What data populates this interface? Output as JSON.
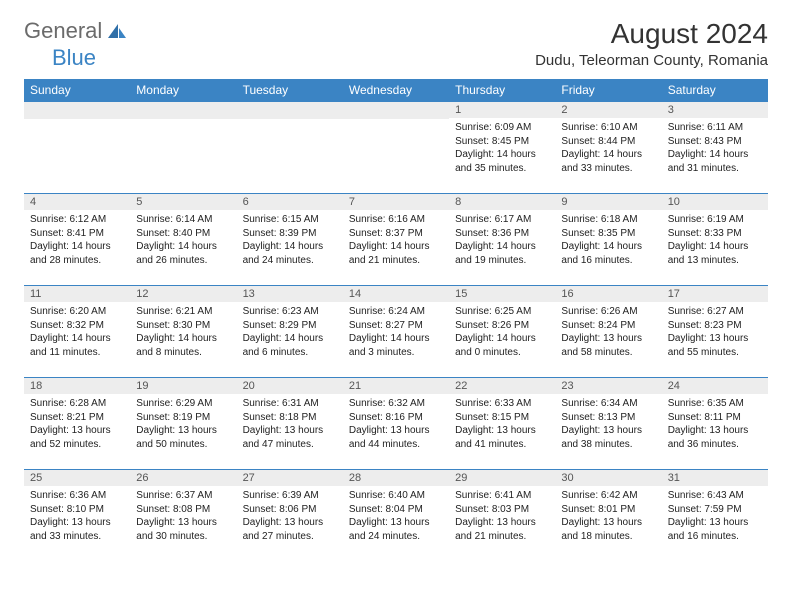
{
  "logo": {
    "part1": "General",
    "part2": "Blue"
  },
  "title": "August 2024",
  "location": "Dudu, Teleorman County, Romania",
  "colors": {
    "header_bg": "#3b84c4",
    "header_text": "#ffffff",
    "daynum_bg": "#ededed",
    "body_text": "#222222",
    "logo_gray": "#6b6b6b",
    "logo_blue": "#3b84c4"
  },
  "weekdays": [
    "Sunday",
    "Monday",
    "Tuesday",
    "Wednesday",
    "Thursday",
    "Friday",
    "Saturday"
  ],
  "weeks": [
    [
      {
        "day": "",
        "lines": []
      },
      {
        "day": "",
        "lines": []
      },
      {
        "day": "",
        "lines": []
      },
      {
        "day": "",
        "lines": []
      },
      {
        "day": "1",
        "lines": [
          "Sunrise: 6:09 AM",
          "Sunset: 8:45 PM",
          "Daylight: 14 hours",
          "and 35 minutes."
        ]
      },
      {
        "day": "2",
        "lines": [
          "Sunrise: 6:10 AM",
          "Sunset: 8:44 PM",
          "Daylight: 14 hours",
          "and 33 minutes."
        ]
      },
      {
        "day": "3",
        "lines": [
          "Sunrise: 6:11 AM",
          "Sunset: 8:43 PM",
          "Daylight: 14 hours",
          "and 31 minutes."
        ]
      }
    ],
    [
      {
        "day": "4",
        "lines": [
          "Sunrise: 6:12 AM",
          "Sunset: 8:41 PM",
          "Daylight: 14 hours",
          "and 28 minutes."
        ]
      },
      {
        "day": "5",
        "lines": [
          "Sunrise: 6:14 AM",
          "Sunset: 8:40 PM",
          "Daylight: 14 hours",
          "and 26 minutes."
        ]
      },
      {
        "day": "6",
        "lines": [
          "Sunrise: 6:15 AM",
          "Sunset: 8:39 PM",
          "Daylight: 14 hours",
          "and 24 minutes."
        ]
      },
      {
        "day": "7",
        "lines": [
          "Sunrise: 6:16 AM",
          "Sunset: 8:37 PM",
          "Daylight: 14 hours",
          "and 21 minutes."
        ]
      },
      {
        "day": "8",
        "lines": [
          "Sunrise: 6:17 AM",
          "Sunset: 8:36 PM",
          "Daylight: 14 hours",
          "and 19 minutes."
        ]
      },
      {
        "day": "9",
        "lines": [
          "Sunrise: 6:18 AM",
          "Sunset: 8:35 PM",
          "Daylight: 14 hours",
          "and 16 minutes."
        ]
      },
      {
        "day": "10",
        "lines": [
          "Sunrise: 6:19 AM",
          "Sunset: 8:33 PM",
          "Daylight: 14 hours",
          "and 13 minutes."
        ]
      }
    ],
    [
      {
        "day": "11",
        "lines": [
          "Sunrise: 6:20 AM",
          "Sunset: 8:32 PM",
          "Daylight: 14 hours",
          "and 11 minutes."
        ]
      },
      {
        "day": "12",
        "lines": [
          "Sunrise: 6:21 AM",
          "Sunset: 8:30 PM",
          "Daylight: 14 hours",
          "and 8 minutes."
        ]
      },
      {
        "day": "13",
        "lines": [
          "Sunrise: 6:23 AM",
          "Sunset: 8:29 PM",
          "Daylight: 14 hours",
          "and 6 minutes."
        ]
      },
      {
        "day": "14",
        "lines": [
          "Sunrise: 6:24 AM",
          "Sunset: 8:27 PM",
          "Daylight: 14 hours",
          "and 3 minutes."
        ]
      },
      {
        "day": "15",
        "lines": [
          "Sunrise: 6:25 AM",
          "Sunset: 8:26 PM",
          "Daylight: 14 hours",
          "and 0 minutes."
        ]
      },
      {
        "day": "16",
        "lines": [
          "Sunrise: 6:26 AM",
          "Sunset: 8:24 PM",
          "Daylight: 13 hours",
          "and 58 minutes."
        ]
      },
      {
        "day": "17",
        "lines": [
          "Sunrise: 6:27 AM",
          "Sunset: 8:23 PM",
          "Daylight: 13 hours",
          "and 55 minutes."
        ]
      }
    ],
    [
      {
        "day": "18",
        "lines": [
          "Sunrise: 6:28 AM",
          "Sunset: 8:21 PM",
          "Daylight: 13 hours",
          "and 52 minutes."
        ]
      },
      {
        "day": "19",
        "lines": [
          "Sunrise: 6:29 AM",
          "Sunset: 8:19 PM",
          "Daylight: 13 hours",
          "and 50 minutes."
        ]
      },
      {
        "day": "20",
        "lines": [
          "Sunrise: 6:31 AM",
          "Sunset: 8:18 PM",
          "Daylight: 13 hours",
          "and 47 minutes."
        ]
      },
      {
        "day": "21",
        "lines": [
          "Sunrise: 6:32 AM",
          "Sunset: 8:16 PM",
          "Daylight: 13 hours",
          "and 44 minutes."
        ]
      },
      {
        "day": "22",
        "lines": [
          "Sunrise: 6:33 AM",
          "Sunset: 8:15 PM",
          "Daylight: 13 hours",
          "and 41 minutes."
        ]
      },
      {
        "day": "23",
        "lines": [
          "Sunrise: 6:34 AM",
          "Sunset: 8:13 PM",
          "Daylight: 13 hours",
          "and 38 minutes."
        ]
      },
      {
        "day": "24",
        "lines": [
          "Sunrise: 6:35 AM",
          "Sunset: 8:11 PM",
          "Daylight: 13 hours",
          "and 36 minutes."
        ]
      }
    ],
    [
      {
        "day": "25",
        "lines": [
          "Sunrise: 6:36 AM",
          "Sunset: 8:10 PM",
          "Daylight: 13 hours",
          "and 33 minutes."
        ]
      },
      {
        "day": "26",
        "lines": [
          "Sunrise: 6:37 AM",
          "Sunset: 8:08 PM",
          "Daylight: 13 hours",
          "and 30 minutes."
        ]
      },
      {
        "day": "27",
        "lines": [
          "Sunrise: 6:39 AM",
          "Sunset: 8:06 PM",
          "Daylight: 13 hours",
          "and 27 minutes."
        ]
      },
      {
        "day": "28",
        "lines": [
          "Sunrise: 6:40 AM",
          "Sunset: 8:04 PM",
          "Daylight: 13 hours",
          "and 24 minutes."
        ]
      },
      {
        "day": "29",
        "lines": [
          "Sunrise: 6:41 AM",
          "Sunset: 8:03 PM",
          "Daylight: 13 hours",
          "and 21 minutes."
        ]
      },
      {
        "day": "30",
        "lines": [
          "Sunrise: 6:42 AM",
          "Sunset: 8:01 PM",
          "Daylight: 13 hours",
          "and 18 minutes."
        ]
      },
      {
        "day": "31",
        "lines": [
          "Sunrise: 6:43 AM",
          "Sunset: 7:59 PM",
          "Daylight: 13 hours",
          "and 16 minutes."
        ]
      }
    ]
  ]
}
